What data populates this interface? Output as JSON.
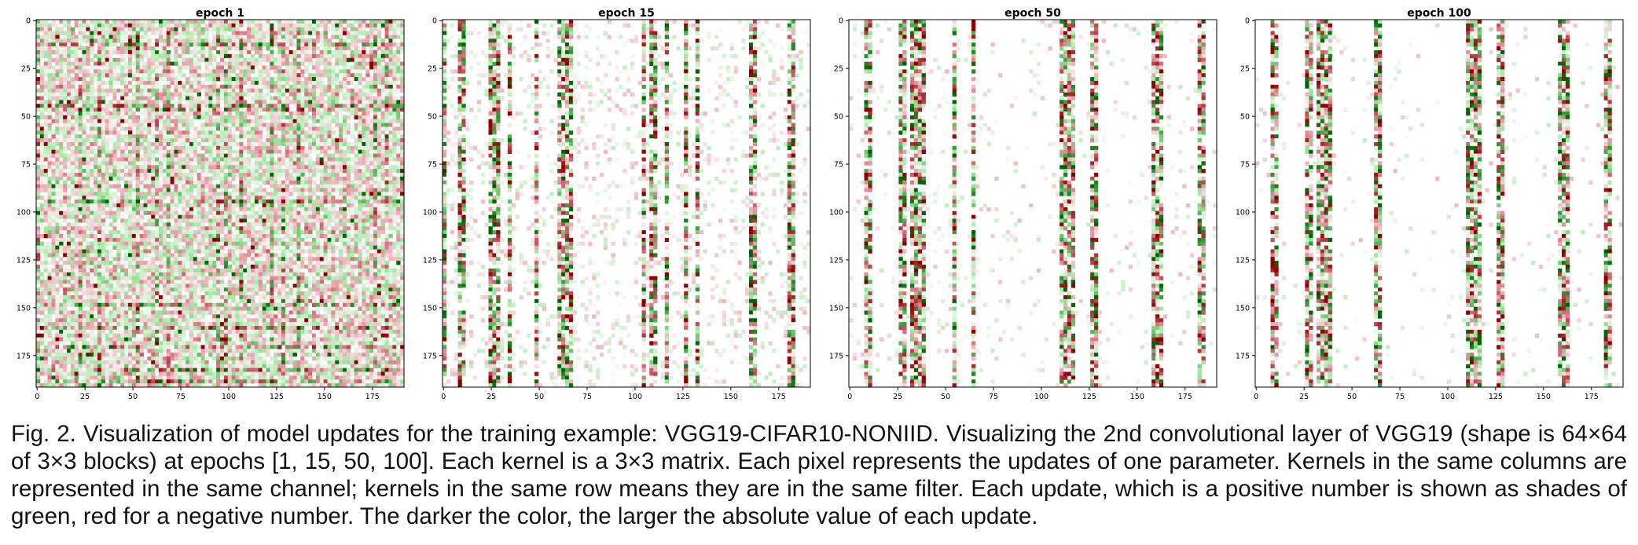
{
  "figure": {
    "caption": "Fig. 2. Visualization of model updates for the training example: VGG19-CIFAR10-NONIID. Visualizing the 2nd convolutional layer of VGG19 (shape is 64×64 of 3×3 blocks) at epochs [1, 15, 50, 100]. Each kernel is a 3×3 matrix. Each pixel represents the updates of one parameter. Kernels in the same columns are represented in the same channel; kernels in the same row means they are in the same filter. Each update, which is a positive number is shown as shades of green, red for a negative number. The darker the color, the larger the absolute value of each update."
  },
  "chart_data": [
    {
      "type": "heatmap",
      "title": "epoch 1",
      "xlim": [
        0,
        192
      ],
      "ylim": [
        192,
        0
      ],
      "xticks": [
        "0",
        "25",
        "50",
        "75",
        "100",
        "125",
        "150",
        "175"
      ],
      "yticks": [
        "0",
        "25",
        "50",
        "75",
        "100",
        "125",
        "150",
        "175"
      ],
      "grid": false,
      "colors": {
        "positive": "#006400",
        "negative": "#8b0000",
        "zero": "#ffffff"
      },
      "density": 1.0,
      "channel_columns": [],
      "filter_rows": [],
      "strong_columns": [
        1,
        23,
        33,
        52,
        62,
        68,
        95,
        98,
        107,
        122,
        128,
        136,
        177,
        183
      ],
      "strong_rows": [
        12,
        13,
        45,
        46,
        94,
        95,
        148,
        160,
        170,
        182,
        188
      ]
    },
    {
      "type": "heatmap",
      "title": "epoch 15",
      "xlim": [
        0,
        192
      ],
      "ylim": [
        192,
        0
      ],
      "xticks": [
        "0",
        "25",
        "50",
        "75",
        "100",
        "125",
        "150",
        "175"
      ],
      "yticks": [
        "0",
        "25",
        "50",
        "75",
        "100",
        "125",
        "150",
        "175"
      ],
      "grid": false,
      "colors": {
        "positive": "#006400",
        "negative": "#8b0000",
        "zero": "#ffffff"
      },
      "density": 0.32,
      "channel_columns": [
        0,
        9,
        10,
        11,
        24,
        27,
        28,
        29,
        34,
        35,
        48,
        61,
        62,
        65,
        67,
        104,
        108,
        109,
        111,
        116,
        117,
        127,
        133,
        160,
        162,
        181,
        182,
        183
      ],
      "filter_rows": [],
      "strong_columns": [],
      "strong_rows": []
    },
    {
      "type": "heatmap",
      "title": "epoch 50",
      "xlim": [
        0,
        192
      ],
      "ylim": [
        192,
        0
      ],
      "xticks": [
        "0",
        "25",
        "50",
        "75",
        "100",
        "125",
        "150",
        "175"
      ],
      "yticks": [
        "0",
        "25",
        "50",
        "75",
        "100",
        "125",
        "150",
        "175"
      ],
      "grid": false,
      "colors": {
        "positive": "#006400",
        "negative": "#8b0000",
        "zero": "#ffffff"
      },
      "density": 0.1,
      "channel_columns": [
        9,
        10,
        11,
        27,
        28,
        29,
        33,
        34,
        35,
        36,
        37,
        38,
        54,
        55,
        65,
        111,
        112,
        113,
        114,
        115,
        116,
        126,
        127,
        128,
        159,
        160,
        161,
        162,
        183,
        184,
        185
      ],
      "filter_rows": [],
      "strong_columns": [],
      "strong_rows": []
    },
    {
      "type": "heatmap",
      "title": "epoch 100",
      "xlim": [
        0,
        192
      ],
      "ylim": [
        192,
        0
      ],
      "xticks": [
        "0",
        "25",
        "50",
        "75",
        "100",
        "125",
        "150",
        "175"
      ],
      "yticks": [
        "0",
        "25",
        "50",
        "75",
        "100",
        "125",
        "150",
        "175"
      ],
      "grid": false,
      "colors": {
        "positive": "#006400",
        "negative": "#8b0000",
        "zero": "#ffffff"
      },
      "density": 0.06,
      "channel_columns": [
        9,
        10,
        11,
        27,
        28,
        29,
        33,
        34,
        35,
        36,
        37,
        38,
        63,
        64,
        65,
        111,
        112,
        113,
        114,
        115,
        116,
        126,
        127,
        128,
        159,
        160,
        161,
        162,
        183,
        184,
        185
      ],
      "filter_rows": [],
      "strong_columns": [],
      "strong_rows": []
    }
  ]
}
